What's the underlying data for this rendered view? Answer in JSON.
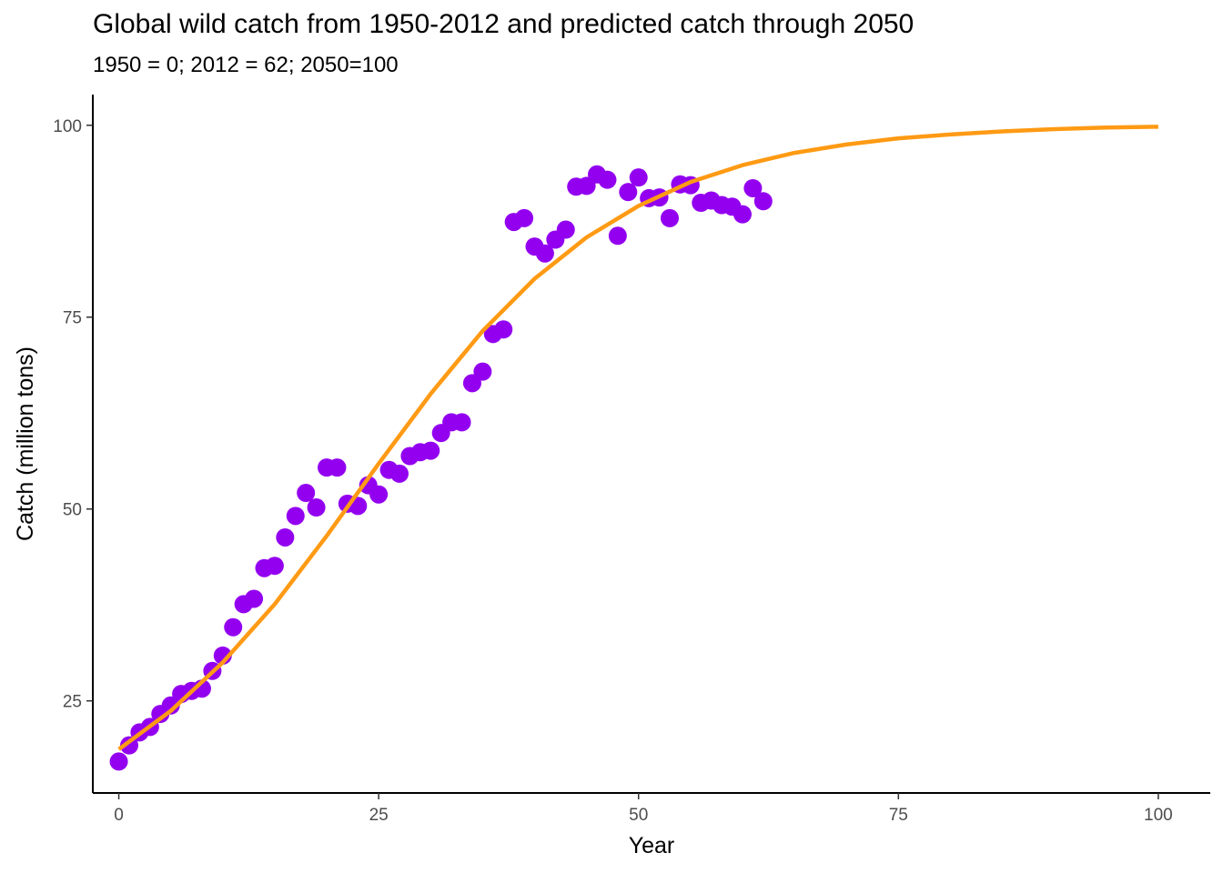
{
  "chart_data": {
    "type": "scatter",
    "title": "Global wild catch from 1950-2012 and predicted catch through 2050",
    "subtitle": "1950 = 0; 2012 = 62; 2050=100",
    "xlabel": "Year",
    "ylabel": "Catch (million tons)",
    "xlim": [
      -2.5,
      105
    ],
    "ylim": [
      13,
      104
    ],
    "xticks": [
      0,
      25,
      50,
      75,
      100
    ],
    "yticks": [
      25,
      50,
      75,
      100
    ],
    "grid": false,
    "legend": "none",
    "series": [
      {
        "type": "scatter",
        "color": "#9300f0",
        "x": [
          0,
          1,
          2,
          3,
          4,
          5,
          6,
          7,
          8,
          9,
          10,
          11,
          12,
          13,
          14,
          15,
          16,
          17,
          18,
          19,
          20,
          21,
          22,
          23,
          24,
          25,
          26,
          27,
          28,
          29,
          30,
          31,
          32,
          33,
          34,
          35,
          36,
          37,
          38,
          39,
          40,
          41,
          42,
          43,
          44,
          45,
          46,
          47,
          48,
          49,
          50,
          51,
          52,
          53,
          54,
          55,
          56,
          57,
          58,
          59,
          60,
          61,
          62
        ],
        "y": [
          17.1,
          19.2,
          20.9,
          21.6,
          23.3,
          24.4,
          25.9,
          26.3,
          26.6,
          28.9,
          30.9,
          34.6,
          37.6,
          38.3,
          42.3,
          42.6,
          46.3,
          49.1,
          52.1,
          50.2,
          55.4,
          55.4,
          50.7,
          50.4,
          53.1,
          51.9,
          55.1,
          54.6,
          56.9,
          57.4,
          57.6,
          59.9,
          61.3,
          61.3,
          66.4,
          67.9,
          72.8,
          73.4,
          87.4,
          87.9,
          84.2,
          83.3,
          85.1,
          86.4,
          92.0,
          92.1,
          93.6,
          92.9,
          85.6,
          91.3,
          93.2,
          90.5,
          90.6,
          87.9,
          92.3,
          92.2,
          89.9,
          90.2,
          89.6,
          89.4,
          88.4,
          91.8,
          90.1
        ]
      },
      {
        "type": "line",
        "color": "#ff9a14",
        "x": [
          0,
          5,
          10,
          15,
          20,
          25,
          30,
          35,
          40,
          45,
          50,
          55,
          60,
          65,
          70,
          75,
          80,
          85,
          90,
          95,
          100
        ],
        "y": [
          18.7,
          23.7,
          30.0,
          37.6,
          46.5,
          55.9,
          65.0,
          73.2,
          80.0,
          85.4,
          89.5,
          92.6,
          94.8,
          96.4,
          97.5,
          98.3,
          98.8,
          99.2,
          99.5,
          99.7,
          99.8
        ]
      }
    ]
  }
}
